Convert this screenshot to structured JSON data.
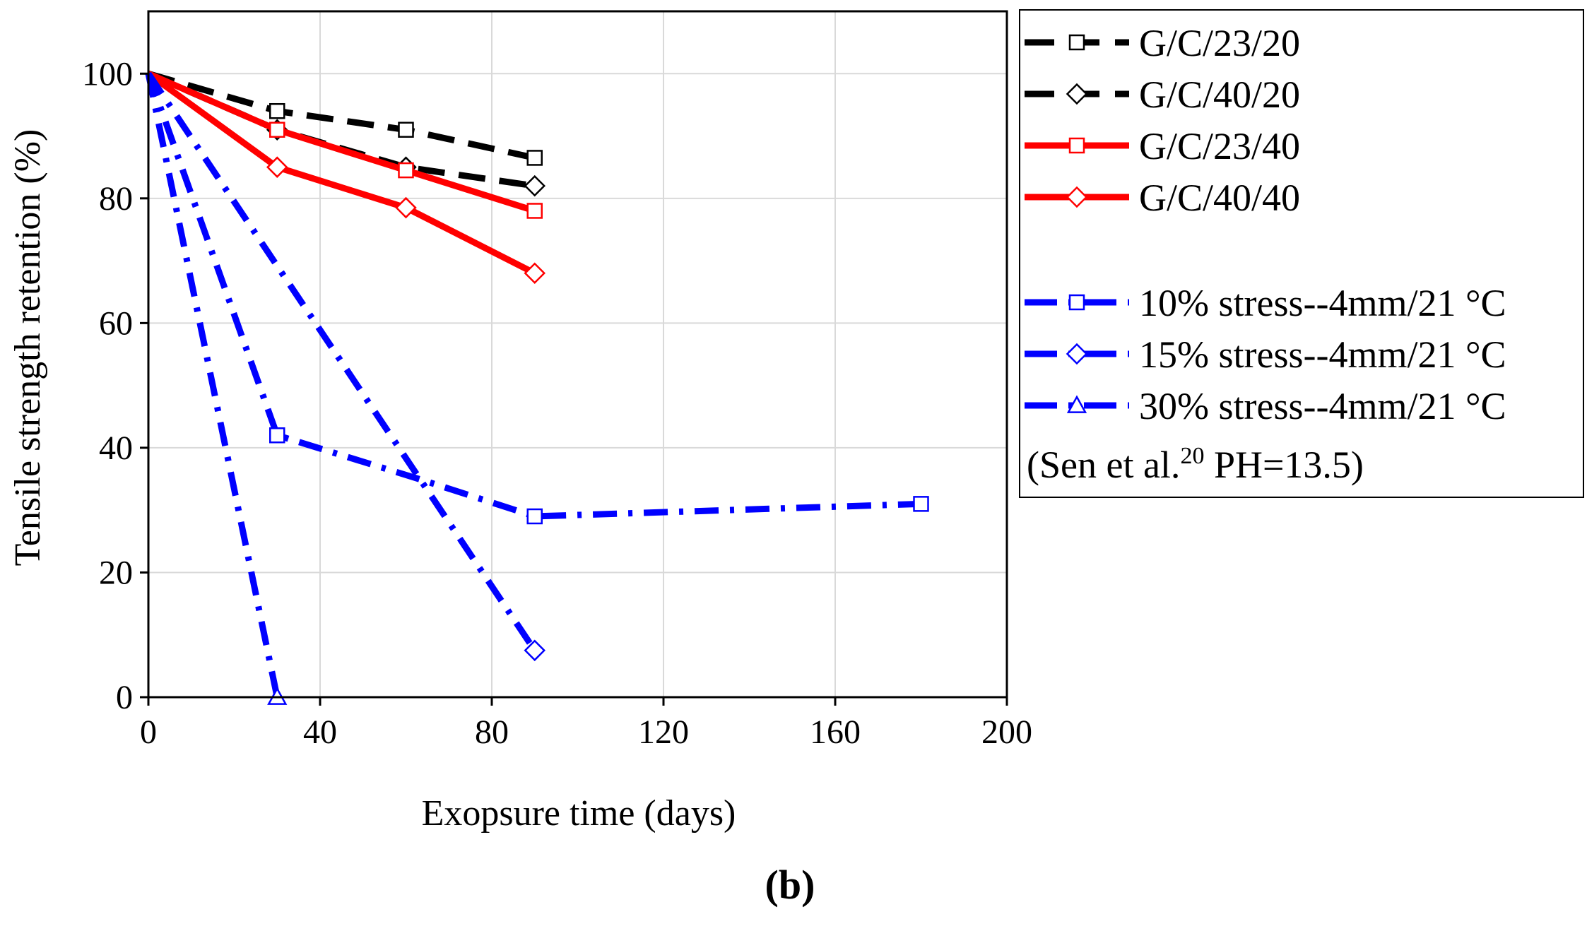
{
  "chart_data": {
    "type": "line",
    "title": "",
    "xlabel": "Exopsure time (days)",
    "ylabel": "Tensile strength retention (%)",
    "xlim": [
      0,
      200
    ],
    "ylim": [
      0,
      110
    ],
    "xticks": [
      0,
      40,
      80,
      120,
      160,
      200
    ],
    "yticks": [
      0,
      20,
      40,
      60,
      80,
      100
    ],
    "grid": true,
    "legend_position": "right",
    "panel_label": "(b)",
    "series": [
      {
        "name": "G/C/23/20",
        "color": "#000000",
        "line": "dashed",
        "marker": "square",
        "x": [
          0,
          30,
          60,
          90
        ],
        "y": [
          100,
          94,
          91,
          86.5
        ]
      },
      {
        "name": "G/C/40/20",
        "color": "#000000",
        "line": "dashed",
        "marker": "diamond",
        "x": [
          0,
          30,
          60,
          90
        ],
        "y": [
          100,
          91,
          85,
          82
        ]
      },
      {
        "name": "G/C/23/40",
        "color": "#ff0000",
        "line": "solid",
        "marker": "square",
        "x": [
          0,
          30,
          60,
          90
        ],
        "y": [
          100,
          91,
          84.5,
          78
        ]
      },
      {
        "name": "G/C/40/40",
        "color": "#ff0000",
        "line": "solid",
        "marker": "diamond",
        "x": [
          0,
          30,
          60,
          90
        ],
        "y": [
          100,
          85,
          78.5,
          68
        ]
      },
      {
        "name": "10% stress--4mm/21 °C",
        "color": "#0000ff",
        "line": "dashdot",
        "marker": "square",
        "x": [
          0,
          30,
          63,
          90,
          180
        ],
        "y": [
          100,
          42,
          35,
          29,
          31
        ],
        "marker_x": [
          0,
          30,
          90,
          180
        ],
        "marker_y": [
          100,
          42,
          29,
          31
        ]
      },
      {
        "name": "15% stress--4mm/21 °C",
        "color": "#0000ff",
        "line": "dashdot",
        "marker": "diamond",
        "x": [
          0,
          90
        ],
        "y": [
          100,
          7.5
        ],
        "marker_x": [
          0,
          90
        ],
        "marker_y": [
          100,
          7.5
        ]
      },
      {
        "name": "30% stress--4mm/21 °C",
        "color": "#0000ff",
        "line": "dashdot",
        "marker": "triangle",
        "x": [
          0,
          30
        ],
        "y": [
          100,
          0
        ],
        "marker_x": [
          0,
          30
        ],
        "marker_y": [
          100,
          0
        ]
      }
    ],
    "legend_note": {
      "prefix": "(Sen et al.",
      "superscript": "20",
      "suffix": " PH=13.5)"
    }
  }
}
